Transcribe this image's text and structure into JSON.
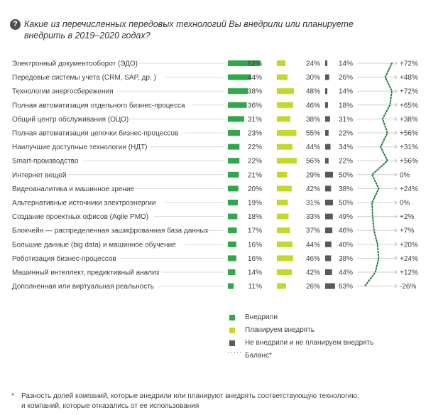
{
  "header": {
    "icon": "question-circle-icon",
    "title": "Какие из перечисленных передовых технологий Вы внедрили или планируете внедрить в 2019–2020 годах?"
  },
  "chart_data": {
    "type": "bar",
    "subtype": "stacked-horizontal-with-balance-line",
    "categories": [
      "Электронный документооборот (ЭДО)",
      "Передовые системы учета (CRM, SAP, др. )",
      "Технологии энергосбережения",
      "Полная автоматизация отдельного бизнес-процесса",
      "Общий центр обслуживания (ОЦО)",
      "Полная автоматизация цепочки бизнес-процессов",
      "Наилучшие доступные технологии (НДТ)",
      "Smart-производство",
      "Интернет вещей",
      "Видеоаналитика и машинное зрение",
      " Альтернативные источники электроэнергии",
      "Создание проектных офисов (Agile PMO)",
      "Блокчейн — распределенная зашифрованная база данных",
      "Большие данные (big data) и машинное обучение",
      "Роботизация бизнес-процессов",
      "Машинный интеллект, предиктивный анализ",
      "Дополненная или виртуальная реальность"
    ],
    "series": [
      {
        "name": "Внедрили",
        "color": "#2ea84a",
        "values": [
          62,
          44,
          38,
          36,
          31,
          23,
          22,
          22,
          21,
          20,
          19,
          18,
          17,
          16,
          16,
          14,
          11
        ]
      },
      {
        "name": "Планируем внедрять",
        "color": "#c5d82a",
        "values": [
          24,
          30,
          48,
          46,
          38,
          55,
          44,
          56,
          29,
          42,
          31,
          33,
          37,
          44,
          46,
          42,
          26
        ]
      },
      {
        "name": "Не внедрили и не планируем внедрять",
        "color": "#595959",
        "values": [
          14,
          26,
          14,
          18,
          31,
          22,
          34,
          22,
          50,
          38,
          50,
          49,
          46,
          40,
          38,
          44,
          63
        ]
      }
    ],
    "balance": {
      "name": "Баланс*",
      "color": "#1f7a3c",
      "labels": [
        "+72%",
        "+48%",
        "+72%",
        "+65%",
        "+38%",
        "+56%",
        "+31%",
        "+56%",
        "0%",
        "+24%",
        "0%",
        "+2%",
        "+7%",
        "+20%",
        "+24%",
        "+12%",
        "-26%"
      ],
      "values": [
        72,
        48,
        72,
        65,
        38,
        56,
        31,
        56,
        0,
        24,
        0,
        2,
        7,
        20,
        24,
        12,
        -26
      ]
    },
    "value_suffix": "%"
  },
  "legend": {
    "items": [
      {
        "label": "Внедрили",
        "color": "#2ea84a"
      },
      {
        "label": "Планируем внедрять",
        "color": "#c5d82a"
      },
      {
        "label": "Не внедрили и не планируем внедрять",
        "color": "#595959"
      },
      {
        "label": "Баланс*",
        "color": "#1f7a3c"
      }
    ]
  },
  "footnote": {
    "star": "*",
    "line1": "Разность долей компаний, которые внедрили или планируют внедрять соответствующую технологию,",
    "line2": "и компаний, которые отказались от ее использования"
  }
}
